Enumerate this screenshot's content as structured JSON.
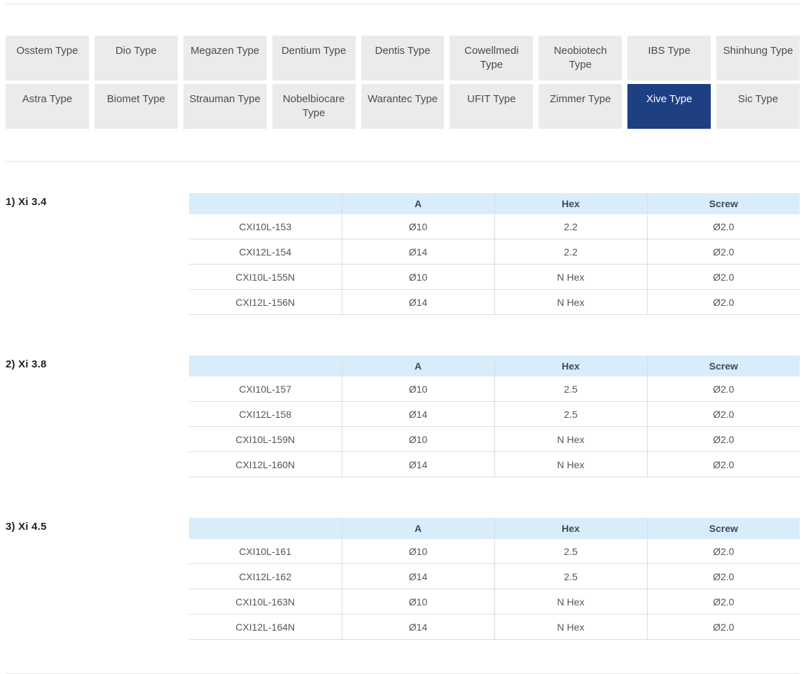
{
  "colors": {
    "tab_bg": "#ebebeb",
    "tab_text": "#4c4c4c",
    "active_tab_bg": "#1e3f82",
    "active_tab_text": "#ffffff",
    "table_header_bg": "#d9ecfa",
    "table_header_text": "#3a4a5a",
    "row_border": "#dddddd",
    "divider": "#e8e8e8"
  },
  "tabs": {
    "items": [
      {
        "label": "Osstem Type",
        "active": false
      },
      {
        "label": "Dio Type",
        "active": false
      },
      {
        "label": "Megazen Type",
        "active": false
      },
      {
        "label": "Dentium Type",
        "active": false
      },
      {
        "label": "Dentis Type",
        "active": false
      },
      {
        "label": "Cowellmedi Type",
        "active": false
      },
      {
        "label": "Neobiotech Type",
        "active": false
      },
      {
        "label": "IBS Type",
        "active": false
      },
      {
        "label": "Shinhung Type",
        "active": false
      },
      {
        "label": "Astra Type",
        "active": false
      },
      {
        "label": "Biomet Type",
        "active": false
      },
      {
        "label": "Strauman Type",
        "active": false
      },
      {
        "label": "Nobelbiocare Type",
        "active": false
      },
      {
        "label": "Warantec Type",
        "active": false
      },
      {
        "label": "UFIT Type",
        "active": false
      },
      {
        "label": "Zimmer Type",
        "active": false
      },
      {
        "label": "Xive Type",
        "active": true
      },
      {
        "label": "Sic Type",
        "active": false
      }
    ]
  },
  "sections": [
    {
      "heading": "1) Xi 3.4",
      "columns": [
        "",
        "A",
        "Hex",
        "Screw"
      ],
      "rows": [
        [
          "CXI10L-153",
          "Ø10",
          "2.2",
          "Ø2.0"
        ],
        [
          "CXI12L-154",
          "Ø14",
          "2.2",
          "Ø2.0"
        ],
        [
          "CXI10L-155N",
          "Ø10",
          "N Hex",
          "Ø2.0"
        ],
        [
          "CXI12L-156N",
          "Ø14",
          "N Hex",
          "Ø2.0"
        ]
      ]
    },
    {
      "heading": "2) Xi 3.8",
      "columns": [
        "",
        "A",
        "Hex",
        "Screw"
      ],
      "rows": [
        [
          "CXI10L-157",
          "Ø10",
          "2.5",
          "Ø2.0"
        ],
        [
          "CXI12L-158",
          "Ø14",
          "2.5",
          "Ø2.0"
        ],
        [
          "CXI10L-159N",
          "Ø10",
          "N Hex",
          "Ø2.0"
        ],
        [
          "CXI12L-160N",
          "Ø14",
          "N Hex",
          "Ø2.0"
        ]
      ]
    },
    {
      "heading": "3) Xi 4.5",
      "columns": [
        "",
        "A",
        "Hex",
        "Screw"
      ],
      "rows": [
        [
          "CXI10L-161",
          "Ø10",
          "2.5",
          "Ø2.0"
        ],
        [
          "CXI12L-162",
          "Ø14",
          "2.5",
          "Ø2.0"
        ],
        [
          "CXI10L-163N",
          "Ø10",
          "N Hex",
          "Ø2.0"
        ],
        [
          "CXI12L-164N",
          "Ø14",
          "N Hex",
          "Ø2.0"
        ]
      ]
    }
  ]
}
